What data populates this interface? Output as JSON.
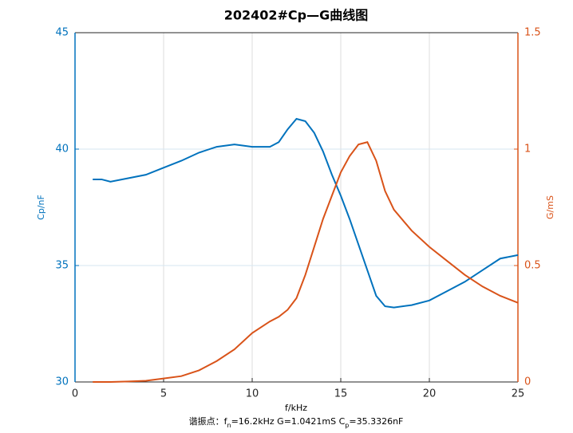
{
  "chart_data": {
    "type": "line",
    "title": "202402#Cp—G曲线图",
    "xlabel": "f/kHz",
    "ylabel": "Cp/nF",
    "y2label": "G/mS",
    "annotation": [
      "谐振点：f",
      "n",
      "=16.2kHz  G=1.0421mS  C",
      "p",
      "=35.3326nF"
    ],
    "x": [
      1,
      1.5,
      2,
      3,
      4,
      5,
      6,
      7,
      8,
      9,
      10,
      11,
      11.5,
      12,
      12.5,
      13,
      13.5,
      14,
      14.5,
      15,
      15.5,
      16,
      16.5,
      17,
      17.5,
      18,
      19,
      20,
      21,
      22,
      23,
      24,
      25
    ],
    "series": [
      {
        "name": "Cp",
        "color": "#0072bd",
        "axis": "y",
        "values": [
          38.7,
          38.7,
          38.6,
          38.75,
          38.9,
          39.2,
          39.5,
          39.85,
          40.1,
          40.2,
          40.1,
          40.1,
          40.3,
          40.85,
          41.3,
          41.2,
          40.7,
          39.9,
          38.9,
          38.0,
          37.0,
          35.9,
          34.8,
          33.7,
          33.25,
          33.2,
          33.3,
          33.5,
          33.9,
          34.3,
          34.8,
          35.3,
          35.45
        ]
      },
      {
        "name": "G",
        "color": "#d95319",
        "axis": "y2",
        "values": [
          0,
          0,
          0,
          0.002,
          0.005,
          0.015,
          0.025,
          0.05,
          0.09,
          0.14,
          0.21,
          0.26,
          0.28,
          0.31,
          0.36,
          0.46,
          0.58,
          0.7,
          0.8,
          0.9,
          0.97,
          1.02,
          1.03,
          0.95,
          0.82,
          0.74,
          0.65,
          0.58,
          0.52,
          0.46,
          0.41,
          0.37,
          0.34
        ]
      }
    ],
    "xlim": [
      0,
      25
    ],
    "xticks": [
      0,
      5,
      10,
      15,
      20,
      25
    ],
    "ylim": [
      30,
      45
    ],
    "yticks": [
      30,
      35,
      40,
      45
    ],
    "y2lim": [
      0,
      1.5
    ],
    "y2ticks": [
      0,
      0.5,
      1,
      1.5
    ],
    "grid": true
  }
}
